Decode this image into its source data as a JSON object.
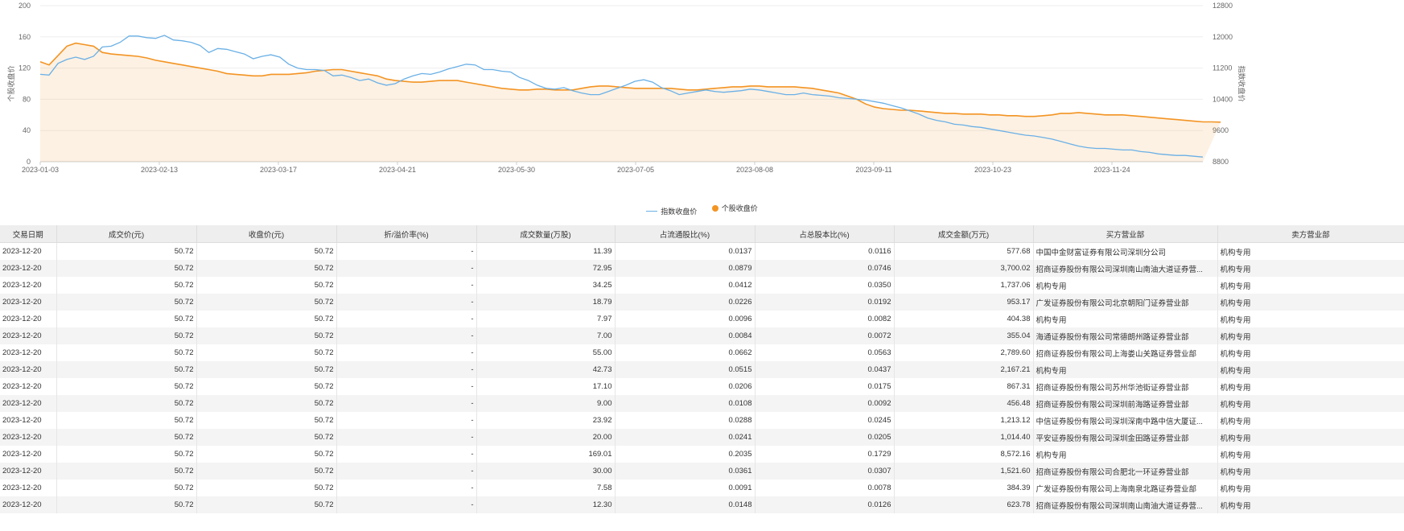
{
  "chart_data": {
    "type": "line",
    "x_labels": [
      "2023-01-03",
      "2023-02-13",
      "2023-03-17",
      "2023-04-21",
      "2023-05-30",
      "2023-07-05",
      "2023-08-08",
      "2023-09-11",
      "2023-10-23",
      "2023-11-24"
    ],
    "left_ticks": [
      0,
      40,
      80,
      120,
      160,
      200
    ],
    "right_ticks": [
      8800,
      9600,
      10400,
      11200,
      12000,
      12800
    ],
    "ylabel_left": "个股收盘价",
    "ylabel_right": "指数收盘价",
    "ylim_left": [
      0,
      200
    ],
    "ylim_right": [
      8800,
      12800
    ],
    "legend_position": "bottom-center",
    "series": [
      {
        "name": "指数收盘价",
        "color": "#6ab0e6",
        "axis": "right",
        "values": [
          11040,
          11020,
          11320,
          11420,
          11480,
          11420,
          11500,
          11740,
          11760,
          11860,
          12020,
          12020,
          11980,
          11960,
          12040,
          11920,
          11900,
          11860,
          11780,
          11600,
          11700,
          11680,
          11620,
          11560,
          11440,
          11500,
          11540,
          11480,
          11300,
          11200,
          11160,
          11160,
          11140,
          11000,
          11020,
          10960,
          10880,
          10920,
          10820,
          10760,
          10800,
          10920,
          11000,
          11060,
          11040,
          11100,
          11180,
          11240,
          11300,
          11280,
          11160,
          11160,
          11120,
          11100,
          10960,
          10880,
          10760,
          10680,
          10660,
          10700,
          10620,
          10560,
          10520,
          10520,
          10600,
          10680,
          10760,
          10860,
          10900,
          10840,
          10700,
          10620,
          10520,
          10560,
          10600,
          10640,
          10600,
          10580,
          10600,
          10620,
          10660,
          10640,
          10600,
          10560,
          10520,
          10520,
          10560,
          10520,
          10500,
          10480,
          10440,
          10420,
          10400,
          10380,
          10340,
          10300,
          10240,
          10180,
          10100,
          10020,
          9920,
          9860,
          9820,
          9760,
          9740,
          9700,
          9680,
          9640,
          9600,
          9560,
          9520,
          9480,
          9460,
          9420,
          9380,
          9320,
          9260,
          9200,
          9160,
          9140,
          9140,
          9120,
          9100,
          9100,
          9060,
          9040,
          9000,
          8980,
          8960,
          8960,
          8940,
          8920
        ]
      },
      {
        "name": "个股收盘价",
        "color": "#f39423",
        "axis": "left",
        "values": [
          128,
          124,
          136,
          148,
          152,
          150,
          148,
          140,
          138,
          137,
          136,
          135,
          133,
          130,
          128,
          126,
          124,
          122,
          120,
          118,
          116,
          113,
          112,
          111,
          110,
          110,
          112,
          112,
          112,
          113,
          114,
          116,
          117,
          118,
          118,
          116,
          114,
          112,
          110,
          106,
          104,
          103,
          102,
          102,
          103,
          104,
          104,
          104,
          102,
          100,
          98,
          96,
          94,
          93,
          92,
          92,
          93,
          93,
          92,
          92,
          92,
          94,
          96,
          97,
          97,
          96,
          95,
          94,
          94,
          94,
          94,
          94,
          93,
          92,
          92,
          93,
          94,
          95,
          96,
          96,
          97,
          97,
          96,
          96,
          96,
          96,
          95,
          94,
          92,
          90,
          88,
          84,
          80,
          74,
          70,
          68,
          67,
          66,
          66,
          65,
          64,
          63,
          62,
          62,
          61,
          61,
          61,
          60,
          60,
          59,
          59,
          58,
          58,
          59,
          60,
          62,
          62,
          63,
          62,
          61,
          60,
          60,
          60,
          59,
          58,
          57,
          56,
          55,
          54,
          53,
          52,
          51,
          51,
          50.72
        ]
      }
    ]
  },
  "table": {
    "headers": [
      "交易日期",
      "成交价(元)",
      "收盘价(元)",
      "折/溢价率(%)",
      "成交数量(万股)",
      "占流通股比(%)",
      "占总股本比(%)",
      "成交金额(万元)",
      "买方营业部",
      "卖方营业部"
    ],
    "rows": [
      [
        "2023-12-20",
        "50.72",
        "50.72",
        "-",
        "11.39",
        "0.0137",
        "0.0116",
        "577.68",
        "中国中金财富证券有限公司深圳分公司",
        "机构专用"
      ],
      [
        "2023-12-20",
        "50.72",
        "50.72",
        "-",
        "72.95",
        "0.0879",
        "0.0746",
        "3,700.02",
        "招商证券股份有限公司深圳南山南油大道证券营...",
        "机构专用"
      ],
      [
        "2023-12-20",
        "50.72",
        "50.72",
        "-",
        "34.25",
        "0.0412",
        "0.0350",
        "1,737.06",
        "机构专用",
        "机构专用"
      ],
      [
        "2023-12-20",
        "50.72",
        "50.72",
        "-",
        "18.79",
        "0.0226",
        "0.0192",
        "953.17",
        "广发证券股份有限公司北京朝阳门证券营业部",
        "机构专用"
      ],
      [
        "2023-12-20",
        "50.72",
        "50.72",
        "-",
        "7.97",
        "0.0096",
        "0.0082",
        "404.38",
        "机构专用",
        "机构专用"
      ],
      [
        "2023-12-20",
        "50.72",
        "50.72",
        "-",
        "7.00",
        "0.0084",
        "0.0072",
        "355.04",
        "海通证券股份有限公司常德朗州路证券营业部",
        "机构专用"
      ],
      [
        "2023-12-20",
        "50.72",
        "50.72",
        "-",
        "55.00",
        "0.0662",
        "0.0563",
        "2,789.60",
        "招商证券股份有限公司上海娄山关路证券营业部",
        "机构专用"
      ],
      [
        "2023-12-20",
        "50.72",
        "50.72",
        "-",
        "42.73",
        "0.0515",
        "0.0437",
        "2,167.21",
        "机构专用",
        "机构专用"
      ],
      [
        "2023-12-20",
        "50.72",
        "50.72",
        "-",
        "17.10",
        "0.0206",
        "0.0175",
        "867.31",
        "招商证券股份有限公司苏州华池街证券营业部",
        "机构专用"
      ],
      [
        "2023-12-20",
        "50.72",
        "50.72",
        "-",
        "9.00",
        "0.0108",
        "0.0092",
        "456.48",
        "招商证券股份有限公司深圳前海路证券营业部",
        "机构专用"
      ],
      [
        "2023-12-20",
        "50.72",
        "50.72",
        "-",
        "23.92",
        "0.0288",
        "0.0245",
        "1,213.12",
        "中信证券股份有限公司深圳深南中路中信大厦证...",
        "机构专用"
      ],
      [
        "2023-12-20",
        "50.72",
        "50.72",
        "-",
        "20.00",
        "0.0241",
        "0.0205",
        "1,014.40",
        "平安证券股份有限公司深圳金田路证券营业部",
        "机构专用"
      ],
      [
        "2023-12-20",
        "50.72",
        "50.72",
        "-",
        "169.01",
        "0.2035",
        "0.1729",
        "8,572.16",
        "机构专用",
        "机构专用"
      ],
      [
        "2023-12-20",
        "50.72",
        "50.72",
        "-",
        "30.00",
        "0.0361",
        "0.0307",
        "1,521.60",
        "招商证券股份有限公司合肥北一环证券营业部",
        "机构专用"
      ],
      [
        "2023-12-20",
        "50.72",
        "50.72",
        "-",
        "7.58",
        "0.0091",
        "0.0078",
        "384.39",
        "广发证券股份有限公司上海南泉北路证券营业部",
        "机构专用"
      ],
      [
        "2023-12-20",
        "50.72",
        "50.72",
        "-",
        "12.30",
        "0.0148",
        "0.0126",
        "623.78",
        "招商证券股份有限公司深圳南山南油大道证券营...",
        "机构专用"
      ]
    ]
  }
}
